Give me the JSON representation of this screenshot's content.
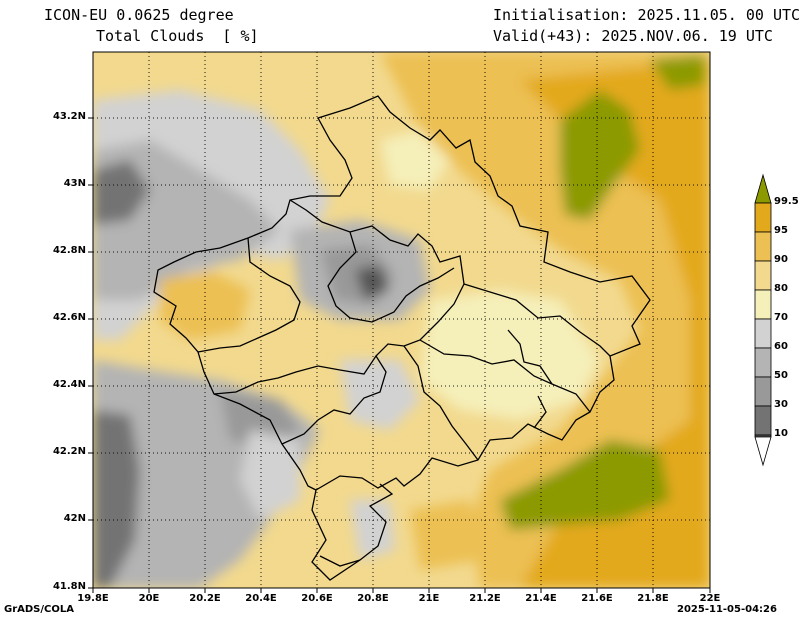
{
  "header": {
    "model": "ICON-EU 0.0625 degree",
    "variable": "Total Clouds  [ %]",
    "init": "Initialisation: 2025.11.05. 00 UTC",
    "valid": "Valid(+43): 2025.NOV.06. 19 UTC"
  },
  "footer": {
    "left": "GrADS/COLA",
    "right": "2025-11-05-04:26"
  },
  "axes": {
    "lon_labels": [
      "19.8E",
      "20E",
      "20.2E",
      "20.4E",
      "20.6E",
      "20.8E",
      "21E",
      "21.2E",
      "21.4E",
      "21.6E",
      "21.8E",
      "22E"
    ],
    "lat_labels": [
      "43.2N",
      "43N",
      "42.8N",
      "42.6N",
      "42.4N",
      "42.2N",
      "42N",
      "41.8N"
    ]
  },
  "colorbar": {
    "levels": [
      "99.5",
      "95",
      "90",
      "80",
      "70",
      "60",
      "50",
      "30",
      "10"
    ],
    "colors": [
      "#8c9a00",
      "#e3a91c",
      "#ecc052",
      "#f2d98e",
      "#f5efb9",
      "#d2d2d2",
      "#b4b4b4",
      "#999999",
      "#737373",
      "#555555",
      "#ffffff"
    ]
  }
}
